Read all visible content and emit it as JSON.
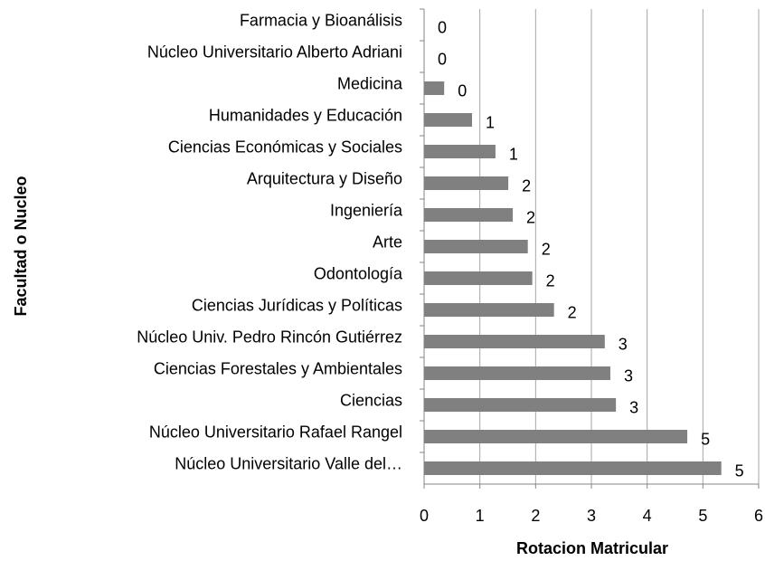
{
  "chart_data": {
    "type": "bar",
    "orientation": "horizontal",
    "x_label": "Rotacion Matricular",
    "y_label": "Facultad o Nucleo",
    "categories": [
      "Farmacia y Bioanálisis",
      "Núcleo Universitario Alberto Adriani",
      "Medicina",
      "Humanidades y Educación",
      "Ciencias Económicas y Sociales",
      "Arquitectura y Diseño",
      "Ingeniería",
      "Arte",
      "Odontología",
      "Ciencias Jurídicas y Políticas",
      "Núcleo Univ. Pedro Rincón Gutiérrez",
      "Ciencias Forestales y Ambientales",
      "Ciencias",
      "Núcleo Universitario Rafael Rangel",
      "Núcleo Universitario Valle del…"
    ],
    "values": [
      0,
      0,
      0.36,
      0.86,
      1.28,
      1.51,
      1.59,
      1.86,
      1.94,
      2.33,
      3.24,
      3.34,
      3.44,
      4.72,
      5.33
    ],
    "value_labels": [
      "0",
      "0",
      "0",
      "1",
      "1",
      "2",
      "2",
      "2",
      "2",
      "2",
      "3",
      "3",
      "3",
      "5",
      "5"
    ],
    "color": "#808080",
    "xlim": [
      0,
      6
    ],
    "xticks": [
      0,
      1,
      2,
      3,
      4,
      5,
      6
    ],
    "grid": true
  }
}
